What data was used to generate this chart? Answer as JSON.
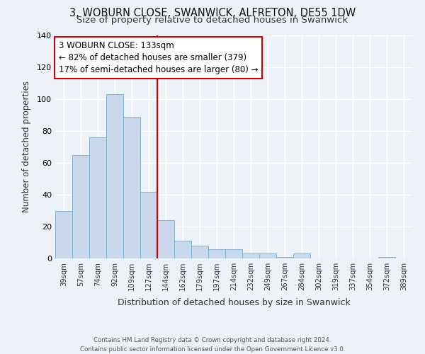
{
  "title": "3, WOBURN CLOSE, SWANWICK, ALFRETON, DE55 1DW",
  "subtitle": "Size of property relative to detached houses in Swanwick",
  "xlabel": "Distribution of detached houses by size in Swanwick",
  "ylabel": "Number of detached properties",
  "bar_labels": [
    "39sqm",
    "57sqm",
    "74sqm",
    "92sqm",
    "109sqm",
    "127sqm",
    "144sqm",
    "162sqm",
    "179sqm",
    "197sqm",
    "214sqm",
    "232sqm",
    "249sqm",
    "267sqm",
    "284sqm",
    "302sqm",
    "319sqm",
    "337sqm",
    "354sqm",
    "372sqm",
    "389sqm"
  ],
  "bar_values": [
    30,
    65,
    76,
    103,
    89,
    42,
    24,
    11,
    8,
    6,
    6,
    3,
    3,
    1,
    3,
    0,
    0,
    0,
    0,
    1,
    0
  ],
  "bar_color": "#c8d8ea",
  "bar_edgecolor": "#8ab0cc",
  "ylim": [
    0,
    140
  ],
  "yticks": [
    0,
    20,
    40,
    60,
    80,
    100,
    120,
    140
  ],
  "red_line_x": 5.5,
  "annotation_line1": "3 WOBURN CLOSE: 133sqm",
  "annotation_line2": "← 82% of detached houses are smaller (379)",
  "annotation_line3": "17% of semi-detached houses are larger (80) →",
  "annotation_box_color": "#ffffff",
  "annotation_border_color": "#cc0000",
  "vline_color": "#cc0000",
  "footer": "Contains HM Land Registry data © Crown copyright and database right 2024.\nContains public sector information licensed under the Open Government Licence v3.0.",
  "background_color": "#edf2f9",
  "title_fontsize": 10.5,
  "subtitle_fontsize": 9.5,
  "annotation_fontsize": 8.5
}
